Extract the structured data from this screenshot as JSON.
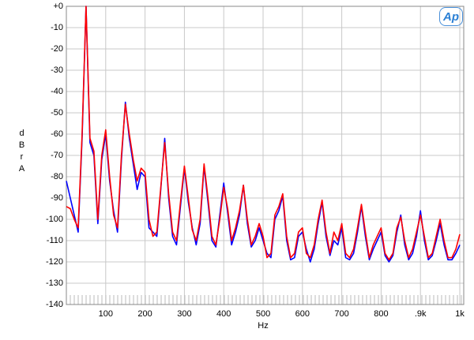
{
  "chart_data": {
    "type": "line",
    "logo": "Ap",
    "y_label": "dBr A",
    "x_label": "Hz",
    "xlim": [
      0,
      1010
    ],
    "ylim": [
      -140,
      0
    ],
    "xticks": [
      100,
      200,
      300,
      400,
      500,
      600,
      700,
      800,
      {
        "value": 900,
        "label": ".9k"
      },
      {
        "value": 1000,
        "label": "1k"
      }
    ],
    "yticks": [
      {
        "value": 0,
        "label": "+0"
      },
      -10,
      -20,
      -30,
      -40,
      -50,
      -60,
      -70,
      -80,
      -90,
      -100,
      -110,
      -120,
      -130,
      -140
    ],
    "grid": true,
    "x": [
      0,
      10,
      20,
      30,
      40,
      50,
      60,
      70,
      80,
      90,
      100,
      110,
      120,
      130,
      140,
      150,
      160,
      170,
      180,
      190,
      200,
      210,
      220,
      230,
      240,
      250,
      260,
      270,
      280,
      290,
      300,
      310,
      320,
      330,
      340,
      350,
      360,
      370,
      380,
      390,
      400,
      410,
      420,
      430,
      440,
      450,
      460,
      470,
      480,
      490,
      500,
      510,
      520,
      530,
      540,
      550,
      560,
      570,
      580,
      590,
      600,
      610,
      620,
      630,
      640,
      650,
      660,
      670,
      680,
      690,
      700,
      710,
      720,
      730,
      740,
      750,
      760,
      770,
      780,
      790,
      800,
      810,
      820,
      830,
      840,
      850,
      860,
      870,
      880,
      890,
      900,
      910,
      920,
      930,
      940,
      950,
      960,
      970,
      980,
      990,
      1000
    ],
    "series": [
      {
        "color": "#0000ff",
        "values": [
          -82,
          -90,
          -98,
          -106,
          -62,
          0,
          -64,
          -70,
          -102,
          -72,
          -60,
          -82,
          -96,
          -106,
          -72,
          -45,
          -62,
          -74,
          -86,
          -78,
          -80,
          -104,
          -106,
          -108,
          -86,
          -62,
          -90,
          -108,
          -112,
          -94,
          -76,
          -92,
          -104,
          -112,
          -102,
          -75,
          -92,
          -110,
          -113,
          -98,
          -83,
          -97,
          -112,
          -106,
          -98,
          -84,
          -102,
          -113,
          -110,
          -104,
          -110,
          -116,
          -118,
          -100,
          -96,
          -89,
          -110,
          -119,
          -118,
          -108,
          -106,
          -114,
          -120,
          -114,
          -102,
          -92,
          -108,
          -117,
          -110,
          -112,
          -104,
          -118,
          -119,
          -116,
          -106,
          -94,
          -108,
          -119,
          -114,
          -110,
          -106,
          -117,
          -120,
          -117,
          -106,
          -98,
          -112,
          -119,
          -116,
          -108,
          -96,
          -110,
          -119,
          -117,
          -110,
          -102,
          -112,
          -119,
          -119,
          -116,
          -112
        ]
      },
      {
        "color": "#ff0000",
        "values": [
          -94,
          -95,
          -100,
          -104,
          -60,
          0,
          -62,
          -68,
          -100,
          -70,
          -58,
          -80,
          -98,
          -104,
          -70,
          -46,
          -60,
          -72,
          -82,
          -76,
          -78,
          -100,
          -108,
          -106,
          -85,
          -64,
          -88,
          -106,
          -110,
          -92,
          -75,
          -90,
          -105,
          -110,
          -100,
          -74,
          -90,
          -108,
          -112,
          -100,
          -85,
          -95,
          -110,
          -104,
          -96,
          -84,
          -100,
          -112,
          -108,
          -102,
          -108,
          -118,
          -116,
          -98,
          -94,
          -88,
          -108,
          -118,
          -116,
          -106,
          -104,
          -116,
          -118,
          -112,
          -100,
          -91,
          -106,
          -116,
          -106,
          -110,
          -102,
          -116,
          -118,
          -114,
          -104,
          -93,
          -106,
          -118,
          -112,
          -108,
          -104,
          -116,
          -119,
          -116,
          -104,
          -99,
          -110,
          -118,
          -114,
          -106,
          -98,
          -108,
          -118,
          -116,
          -108,
          -100,
          -110,
          -118,
          -118,
          -114,
          -107
        ]
      }
    ]
  }
}
